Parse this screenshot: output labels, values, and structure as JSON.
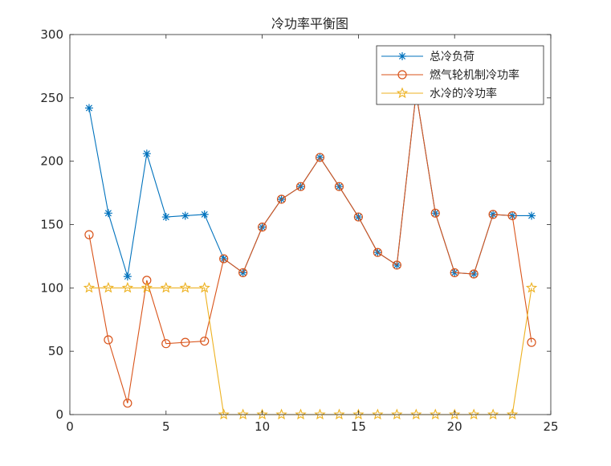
{
  "chart_data": {
    "type": "line",
    "title": "冷功率平衡图",
    "xlabel": "",
    "ylabel": "",
    "xlim": [
      0,
      25
    ],
    "ylim": [
      0,
      300
    ],
    "xticks": [
      0,
      5,
      10,
      15,
      20,
      25
    ],
    "yticks": [
      0,
      50,
      100,
      150,
      200,
      250,
      300
    ],
    "grid": false,
    "legend_position": "top-right",
    "x": [
      1,
      2,
      3,
      4,
      5,
      6,
      7,
      8,
      9,
      10,
      11,
      12,
      13,
      14,
      15,
      16,
      17,
      18,
      19,
      20,
      21,
      22,
      23,
      24
    ],
    "series": [
      {
        "name": "总冷负荷",
        "color": "#0072BD",
        "marker": "asterisk",
        "values": [
          242,
          159,
          109,
          206,
          156,
          157,
          158,
          123,
          112,
          148,
          170,
          180,
          203,
          180,
          156,
          128,
          118,
          254,
          159,
          112,
          111,
          158,
          157,
          157
        ]
      },
      {
        "name": "燃气轮机制冷功率",
        "color": "#D95319",
        "marker": "circle",
        "values": [
          142,
          59,
          9,
          106,
          56,
          57,
          58,
          123,
          112,
          148,
          170,
          180,
          203,
          180,
          156,
          128,
          118,
          254,
          159,
          112,
          111,
          158,
          157,
          57
        ]
      },
      {
        "name": "水冷的冷功率",
        "color": "#EDB120",
        "marker": "star",
        "values": [
          100,
          100,
          100,
          100,
          100,
          100,
          100,
          0,
          0,
          0,
          0,
          0,
          0,
          0,
          0,
          0,
          0,
          0,
          0,
          0,
          0,
          0,
          0,
          100
        ]
      }
    ]
  }
}
